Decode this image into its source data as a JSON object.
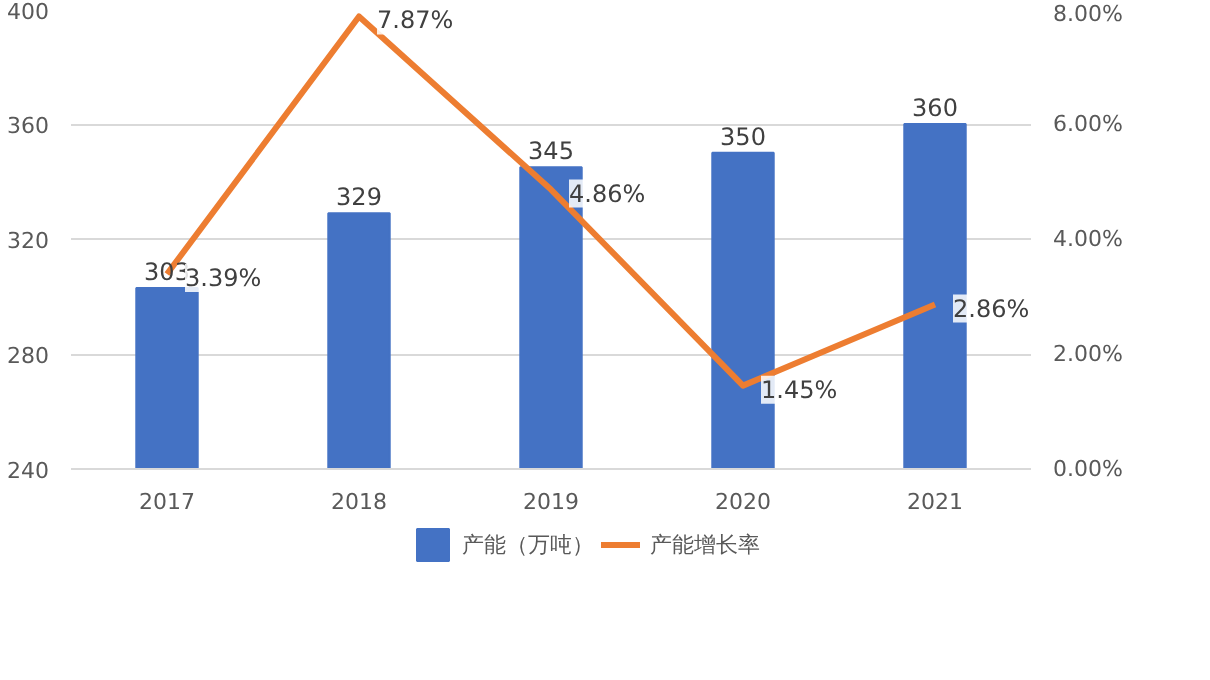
{
  "chart_data": {
    "type": "bar",
    "categories": [
      "2017",
      "2018",
      "2019",
      "2020",
      "2021"
    ],
    "series": [
      {
        "name": "产能（万吨）",
        "type": "bar",
        "color": "#4472c4",
        "values": [
          303,
          329,
          345,
          350,
          360
        ],
        "value_labels": [
          "303",
          "329",
          "345",
          "350",
          "360"
        ]
      },
      {
        "name": "产能增长率",
        "type": "line",
        "axis": "y2",
        "color": "#ed7d31",
        "values": [
          3.39,
          7.87,
          4.86,
          1.45,
          2.86
        ],
        "value_labels": [
          "3.39%",
          "7.87%",
          "4.86%",
          "1.45%",
          "2.86%"
        ]
      }
    ],
    "ylim": [
      240,
      400
    ],
    "yticks": [
      240,
      280,
      320,
      360,
      400
    ],
    "y2lim": [
      0,
      8
    ],
    "y2ticks": [
      {
        "value": 0,
        "label": "0.00%"
      },
      {
        "value": 2,
        "label": "2.00%"
      },
      {
        "value": 4,
        "label": "4.00%"
      },
      {
        "value": 6,
        "label": "6.00%"
      },
      {
        "value": 8,
        "label": "8.00%"
      }
    ],
    "grid": "y",
    "legend": "bottom",
    "marker": "none",
    "line_style": "solid"
  }
}
